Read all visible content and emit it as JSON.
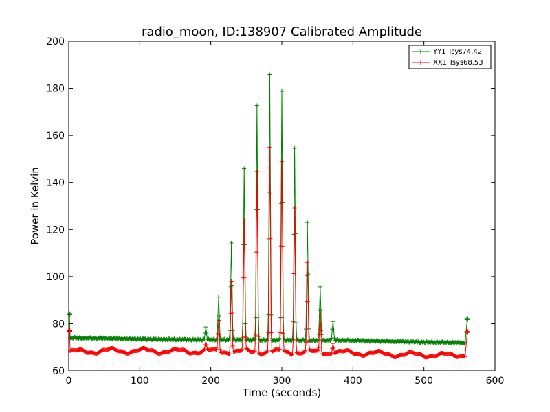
{
  "chart_data": {
    "type": "line",
    "title": "radio_moon, ID:138907 Calibrated Amplitude",
    "xlabel": "Time (seconds)",
    "ylabel": "Power in Kelvin",
    "xlim": [
      0,
      600
    ],
    "ylim": [
      60,
      200
    ],
    "x_ticks": [
      0,
      100,
      200,
      300,
      400,
      500,
      600
    ],
    "y_ticks": [
      60,
      80,
      100,
      120,
      140,
      160,
      180,
      200
    ],
    "x_tick_labels": [
      "0",
      "100",
      "200",
      "300",
      "400",
      "500",
      "600"
    ],
    "y_tick_labels": [
      "60",
      "80",
      "100",
      "120",
      "140",
      "160",
      "180",
      "200"
    ],
    "grid": false,
    "legend_position": "top-right",
    "series": [
      {
        "name": "YY1 Tsys74.42",
        "color": "#008000",
        "baseline_points": [
          [
            2,
            74.0
          ],
          [
            50,
            73.8
          ],
          [
            100,
            73.5
          ],
          [
            150,
            73.3
          ],
          [
            200,
            73.2
          ],
          [
            300,
            73.0
          ],
          [
            380,
            73.0
          ],
          [
            420,
            72.8
          ],
          [
            460,
            72.5
          ],
          [
            500,
            72.2
          ],
          [
            540,
            72.0
          ],
          [
            558,
            72.0
          ]
        ],
        "peaks": [
          [
            193,
            78.5
          ],
          [
            211,
            91.0
          ],
          [
            229,
            114.5
          ],
          [
            247,
            146.0
          ],
          [
            265,
            173.0
          ],
          [
            283,
            186.0
          ],
          [
            300,
            178.5
          ],
          [
            318,
            154.5
          ],
          [
            336,
            123.0
          ],
          [
            354,
            96.0
          ],
          [
            372,
            81.0
          ]
        ],
        "end_points": [
          [
            1,
            84
          ],
          [
            561,
            82
          ]
        ]
      },
      {
        "name": "XX1 Tsys68.53",
        "color": "#ff0000",
        "baseline_points": [
          [
            2,
            68.0
          ],
          [
            50,
            68.5
          ],
          [
            100,
            68.5
          ],
          [
            150,
            68.3
          ],
          [
            200,
            68.3
          ],
          [
            300,
            68.0
          ],
          [
            380,
            67.8
          ],
          [
            420,
            67.5
          ],
          [
            460,
            67.0
          ],
          [
            500,
            66.8
          ],
          [
            540,
            66.5
          ],
          [
            558,
            67.0
          ]
        ],
        "peaks": [
          [
            193,
            72.0
          ],
          [
            211,
            81.5
          ],
          [
            229,
            99.0
          ],
          [
            247,
            123.0
          ],
          [
            265,
            145.0
          ],
          [
            283,
            155.0
          ],
          [
            300,
            148.5
          ],
          [
            318,
            130.0
          ],
          [
            336,
            105.0
          ],
          [
            354,
            85.0
          ],
          [
            372,
            72.5
          ]
        ],
        "end_points": [
          [
            1,
            77
          ],
          [
            561,
            76.5
          ]
        ]
      }
    ]
  }
}
